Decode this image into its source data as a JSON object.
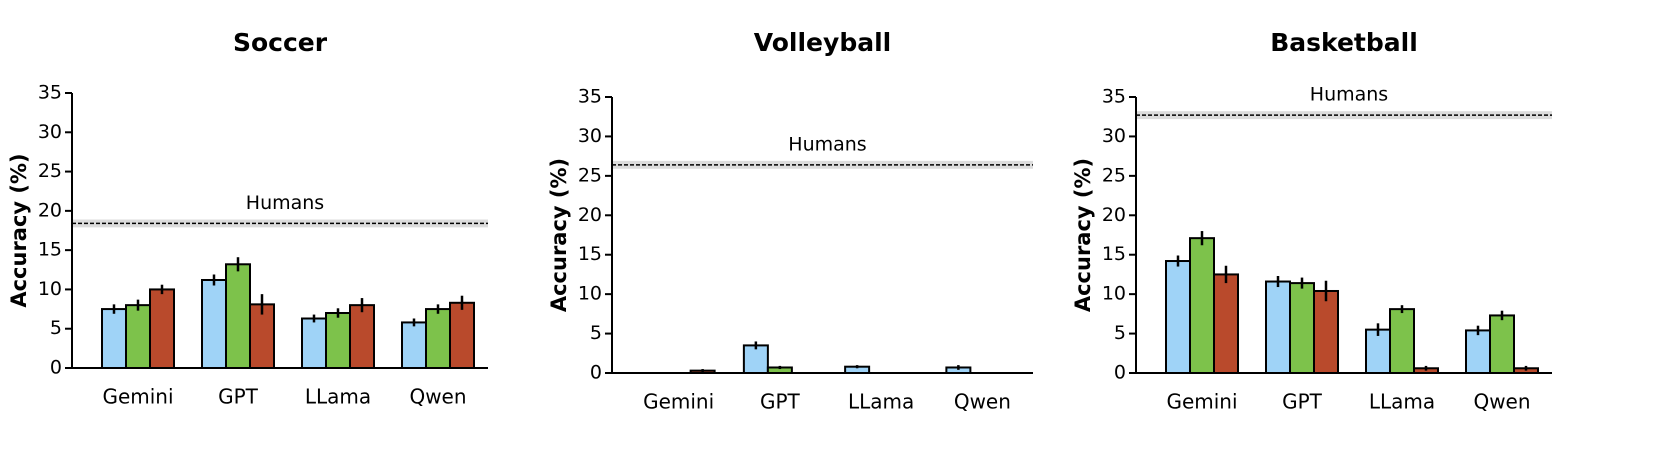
{
  "chart_data": [
    {
      "type": "bar",
      "title": "Soccer",
      "y_label": "Accuracy (%)",
      "categories": [
        "Gemini",
        "GPT",
        "LLama",
        "Qwen"
      ],
      "series": [
        {
          "color": "#9fd3f7",
          "values": [
            7.5,
            11.2,
            6.3,
            5.8
          ],
          "errors": [
            0.6,
            0.7,
            0.5,
            0.5
          ]
        },
        {
          "color": "#7dc24b",
          "values": [
            8.0,
            13.2,
            7.0,
            7.5
          ],
          "errors": [
            0.7,
            0.9,
            0.6,
            0.6
          ]
        },
        {
          "color": "#b94a2c",
          "values": [
            10.0,
            8.1,
            8.0,
            8.3
          ],
          "errors": [
            0.6,
            1.3,
            0.9,
            0.9
          ]
        }
      ],
      "baseline": {
        "label": "Humans",
        "value": 18.4,
        "error": 0.5
      },
      "ylim": [
        0,
        35
      ],
      "yticks": [
        0,
        5,
        10,
        15,
        20,
        25,
        30,
        35
      ]
    },
    {
      "type": "bar",
      "title": "Volleyball",
      "y_label": "Accuracy (%)",
      "categories": [
        "Gemini",
        "GPT",
        "LLama",
        "Qwen"
      ],
      "series": [
        {
          "color": "#9fd3f7",
          "values": [
            0,
            3.5,
            0.8,
            0.7
          ],
          "errors": [
            0.1,
            0.5,
            0.2,
            0.3
          ]
        },
        {
          "color": "#7dc24b",
          "values": [
            0,
            0.7,
            0,
            0
          ],
          "errors": [
            0,
            0.2,
            0,
            0
          ]
        },
        {
          "color": "#b94a2c",
          "values": [
            0.3,
            0,
            0,
            0
          ],
          "errors": [
            0.2,
            0,
            0,
            0
          ]
        }
      ],
      "baseline": {
        "label": "Humans",
        "value": 26.4,
        "error": 0.5
      },
      "ylim": [
        0,
        35
      ],
      "yticks": [
        0,
        5,
        10,
        15,
        20,
        25,
        30,
        35
      ]
    },
    {
      "type": "bar",
      "title": "Basketball",
      "y_label": "Accuracy (%)",
      "categories": [
        "Gemini",
        "GPT",
        "LLama",
        "Qwen"
      ],
      "series": [
        {
          "color": "#9fd3f7",
          "values": [
            14.2,
            11.6,
            5.5,
            5.4
          ],
          "errors": [
            0.7,
            0.7,
            0.8,
            0.6
          ]
        },
        {
          "color": "#7dc24b",
          "values": [
            17.1,
            11.4,
            8.1,
            7.3
          ],
          "errors": [
            0.9,
            0.7,
            0.5,
            0.6
          ]
        },
        {
          "color": "#b94a2c",
          "values": [
            12.5,
            10.4,
            0.6,
            0.6
          ],
          "errors": [
            1.1,
            1.3,
            0.3,
            0.3
          ]
        }
      ],
      "baseline": {
        "label": "Humans",
        "value": 32.7,
        "error": 0.5
      },
      "ylim": [
        0,
        35
      ],
      "yticks": [
        0,
        5,
        10,
        15,
        20,
        25,
        30,
        35
      ]
    }
  ]
}
